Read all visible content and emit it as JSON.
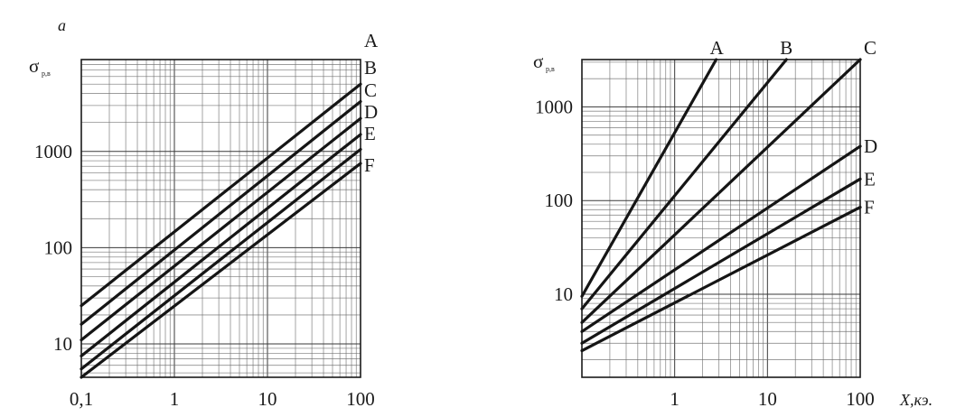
{
  "figure": {
    "panel_label": "a"
  },
  "chart_data": [
    {
      "type": "line",
      "panel": "a",
      "ylabel": "σ",
      "ylabel_subscript": "р,в",
      "xscale": "log",
      "yscale": "log",
      "xlim": [
        0.1,
        100
      ],
      "ylim": [
        4.5,
        9000
      ],
      "x_tick_labels": [
        "0,1",
        "1",
        "10",
        "100"
      ],
      "x_tick_values": [
        0.1,
        1,
        10,
        100
      ],
      "y_tick_labels": [
        "10",
        "100",
        "1000"
      ],
      "y_tick_values": [
        10,
        100,
        1000
      ],
      "grid": true,
      "series": [
        {
          "name": "A",
          "x": [
            0.1,
            100
          ],
          "y": [
            25,
            5000
          ]
        },
        {
          "name": "B",
          "x": [
            0.1,
            100
          ],
          "y": [
            16,
            3300
          ]
        },
        {
          "name": "C",
          "x": [
            0.1,
            100
          ],
          "y": [
            11,
            2200
          ]
        },
        {
          "name": "D",
          "x": [
            0.1,
            100
          ],
          "y": [
            7.5,
            1500
          ]
        },
        {
          "name": "E",
          "x": [
            0.1,
            100
          ],
          "y": [
            5.5,
            1050
          ]
        },
        {
          "name": "F",
          "x": [
            0.1,
            100
          ],
          "y": [
            4.2,
            750
          ]
        }
      ]
    },
    {
      "type": "line",
      "panel": "b",
      "ylabel": "σ",
      "ylabel_subscript": "р,в",
      "xlabel": "X,кэ.",
      "xscale": "log",
      "yscale": "log",
      "xlim": [
        0.1,
        100
      ],
      "ylim": [
        1.3,
        3200
      ],
      "x_tick_labels": [
        "1",
        "10",
        "100"
      ],
      "x_tick_values": [
        1,
        10,
        100
      ],
      "y_tick_labels": [
        "10",
        "100",
        "1000"
      ],
      "y_tick_values": [
        10,
        100,
        1000
      ],
      "grid": true,
      "series": [
        {
          "name": "A",
          "x": [
            0.1,
            2.8
          ],
          "y": [
            9.5,
            3200
          ]
        },
        {
          "name": "B",
          "x": [
            0.1,
            16
          ],
          "y": [
            7,
            3200
          ]
        },
        {
          "name": "C",
          "x": [
            0.1,
            100
          ],
          "y": [
            5,
            3200
          ]
        },
        {
          "name": "D",
          "x": [
            0.1,
            100
          ],
          "y": [
            4,
            380
          ]
        },
        {
          "name": "E",
          "x": [
            0.1,
            100
          ],
          "y": [
            3,
            170
          ]
        },
        {
          "name": "F",
          "x": [
            0.1,
            100
          ],
          "y": [
            2.5,
            85
          ]
        }
      ]
    }
  ]
}
